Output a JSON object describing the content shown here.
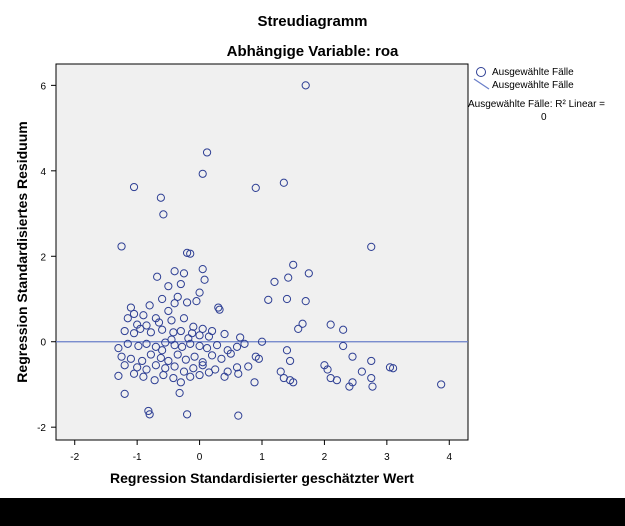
{
  "chart_data": {
    "type": "scatter",
    "title": "Streudiagramm",
    "subtitle": "Abhängige Variable: roa",
    "xlabel": "Regression Standardisierter geschätzter Wert",
    "ylabel": "Regression Standardisiertes Residuum",
    "xlim": [
      -2.3,
      4.3
    ],
    "ylim": [
      -2.3,
      6.5
    ],
    "x_ticks": [
      "-2",
      "-1",
      "0",
      "1",
      "2",
      "3",
      "4"
    ],
    "y_ticks": [
      "-2",
      "0",
      "2",
      "4",
      "6"
    ],
    "grid": false,
    "legend_position": "top-right",
    "series": [
      {
        "name": "Ausgewählte Fälle",
        "marker": "circle-open",
        "color": "#2e3f94",
        "points": [
          [
            1.7,
            6.0
          ],
          [
            0.12,
            4.43
          ],
          [
            0.05,
            3.93
          ],
          [
            -1.05,
            3.62
          ],
          [
            -0.62,
            3.37
          ],
          [
            -0.58,
            2.98
          ],
          [
            0.9,
            3.6
          ],
          [
            1.35,
            3.72
          ],
          [
            -1.25,
            2.23
          ],
          [
            -0.2,
            2.08
          ],
          [
            -0.15,
            2.06
          ],
          [
            2.75,
            2.22
          ],
          [
            1.5,
            1.8
          ],
          [
            1.75,
            1.6
          ],
          [
            1.42,
            1.5
          ],
          [
            1.2,
            1.4
          ],
          [
            0.05,
            1.7
          ],
          [
            -0.4,
            1.65
          ],
          [
            -0.25,
            1.6
          ],
          [
            -0.68,
            1.52
          ],
          [
            -0.3,
            1.35
          ],
          [
            0.08,
            1.45
          ],
          [
            -0.5,
            1.3
          ],
          [
            0.0,
            1.15
          ],
          [
            -0.8,
            0.85
          ],
          [
            -0.6,
            1.0
          ],
          [
            -0.35,
            1.05
          ],
          [
            -0.2,
            0.92
          ],
          [
            -0.05,
            0.95
          ],
          [
            1.7,
            0.95
          ],
          [
            1.4,
            1.0
          ],
          [
            1.1,
            0.98
          ],
          [
            -1.1,
            0.8
          ],
          [
            -1.05,
            0.65
          ],
          [
            -1.15,
            0.55
          ],
          [
            -0.9,
            0.62
          ],
          [
            -0.7,
            0.55
          ],
          [
            -0.5,
            0.72
          ],
          [
            -0.4,
            0.9
          ],
          [
            0.3,
            0.8
          ],
          [
            0.32,
            0.75
          ],
          [
            1.65,
            0.42
          ],
          [
            1.58,
            0.3
          ],
          [
            2.1,
            0.4
          ],
          [
            -1.0,
            0.4
          ],
          [
            -0.85,
            0.38
          ],
          [
            -0.65,
            0.45
          ],
          [
            -0.45,
            0.5
          ],
          [
            -0.25,
            0.55
          ],
          [
            -0.1,
            0.35
          ],
          [
            0.05,
            0.3
          ],
          [
            0.2,
            0.25
          ],
          [
            0.4,
            0.18
          ],
          [
            0.65,
            0.1
          ],
          [
            -1.2,
            0.25
          ],
          [
            -1.05,
            0.2
          ],
          [
            -0.95,
            0.3
          ],
          [
            -0.78,
            0.22
          ],
          [
            -0.6,
            0.28
          ],
          [
            -0.42,
            0.22
          ],
          [
            -0.3,
            0.25
          ],
          [
            -0.12,
            0.2
          ],
          [
            0.0,
            0.15
          ],
          [
            0.15,
            0.12
          ],
          [
            2.3,
            0.28
          ],
          [
            1.0,
            0.0
          ],
          [
            -1.3,
            -0.15
          ],
          [
            -1.15,
            -0.05
          ],
          [
            -0.98,
            -0.1
          ],
          [
            -0.85,
            -0.05
          ],
          [
            -0.7,
            -0.12
          ],
          [
            -0.55,
            -0.02
          ],
          [
            -0.4,
            -0.08
          ],
          [
            -0.28,
            -0.12
          ],
          [
            -0.15,
            -0.05
          ],
          [
            0.0,
            -0.1
          ],
          [
            0.12,
            -0.15
          ],
          [
            0.28,
            -0.08
          ],
          [
            0.45,
            -0.2
          ],
          [
            0.6,
            -0.12
          ],
          [
            0.72,
            -0.05
          ],
          [
            -1.25,
            -0.35
          ],
          [
            -1.1,
            -0.4
          ],
          [
            -0.92,
            -0.45
          ],
          [
            -0.78,
            -0.3
          ],
          [
            -0.62,
            -0.38
          ],
          [
            -0.5,
            -0.45
          ],
          [
            -0.35,
            -0.3
          ],
          [
            -0.22,
            -0.42
          ],
          [
            -0.08,
            -0.35
          ],
          [
            0.05,
            -0.48
          ],
          [
            0.2,
            -0.32
          ],
          [
            0.35,
            -0.4
          ],
          [
            0.5,
            -0.28
          ],
          [
            0.9,
            -0.35
          ],
          [
            0.95,
            -0.4
          ],
          [
            1.4,
            -0.2
          ],
          [
            1.45,
            -0.45
          ],
          [
            2.3,
            -0.1
          ],
          [
            2.45,
            -0.35
          ],
          [
            2.75,
            -0.45
          ],
          [
            -1.2,
            -0.55
          ],
          [
            -1.0,
            -0.6
          ],
          [
            -0.85,
            -0.65
          ],
          [
            -0.7,
            -0.55
          ],
          [
            -0.55,
            -0.62
          ],
          [
            -0.4,
            -0.58
          ],
          [
            -0.25,
            -0.7
          ],
          [
            -0.1,
            -0.62
          ],
          [
            0.05,
            -0.55
          ],
          [
            0.25,
            -0.65
          ],
          [
            0.45,
            -0.7
          ],
          [
            0.6,
            -0.6
          ],
          [
            0.78,
            -0.58
          ],
          [
            1.3,
            -0.7
          ],
          [
            2.0,
            -0.55
          ],
          [
            2.05,
            -0.65
          ],
          [
            2.6,
            -0.7
          ],
          [
            3.05,
            -0.6
          ],
          [
            3.1,
            -0.62
          ],
          [
            -1.3,
            -0.8
          ],
          [
            -1.05,
            -0.75
          ],
          [
            -0.9,
            -0.82
          ],
          [
            -0.72,
            -0.9
          ],
          [
            -0.58,
            -0.78
          ],
          [
            -0.42,
            -0.85
          ],
          [
            -0.3,
            -0.95
          ],
          [
            -0.15,
            -0.82
          ],
          [
            0.0,
            -0.78
          ],
          [
            0.15,
            -0.72
          ],
          [
            0.4,
            -0.82
          ],
          [
            0.62,
            -0.75
          ],
          [
            0.88,
            -0.95
          ],
          [
            1.35,
            -0.85
          ],
          [
            1.45,
            -0.9
          ],
          [
            1.5,
            -0.95
          ],
          [
            2.1,
            -0.85
          ],
          [
            2.2,
            -0.9
          ],
          [
            2.45,
            -0.95
          ],
          [
            2.75,
            -0.85
          ],
          [
            -0.32,
            -1.2
          ],
          [
            2.4,
            -1.05
          ],
          [
            2.77,
            -1.05
          ],
          [
            3.87,
            -1.0
          ],
          [
            -1.2,
            -1.22
          ],
          [
            -0.8,
            -1.7
          ],
          [
            -0.82,
            -1.62
          ],
          [
            -0.2,
            -1.7
          ],
          [
            0.62,
            -1.73
          ],
          [
            -0.6,
            -0.2
          ],
          [
            -0.45,
            0.05
          ],
          [
            -0.18,
            0.08
          ]
        ]
      }
    ],
    "fit_line": {
      "name": "Ausgewählte Fälle",
      "type": "linear",
      "intercept": 0,
      "slope": 0,
      "color": "#6a7fc9"
    },
    "annotation": {
      "r2_label": "Ausgewählte Fälle: R² Linear =",
      "r2_value": "0"
    }
  },
  "colors": {
    "plot_bg": "#f0f0f0",
    "marker": "#2e3f94",
    "fit_line": "#6a7fc9",
    "axis": "#000000"
  }
}
